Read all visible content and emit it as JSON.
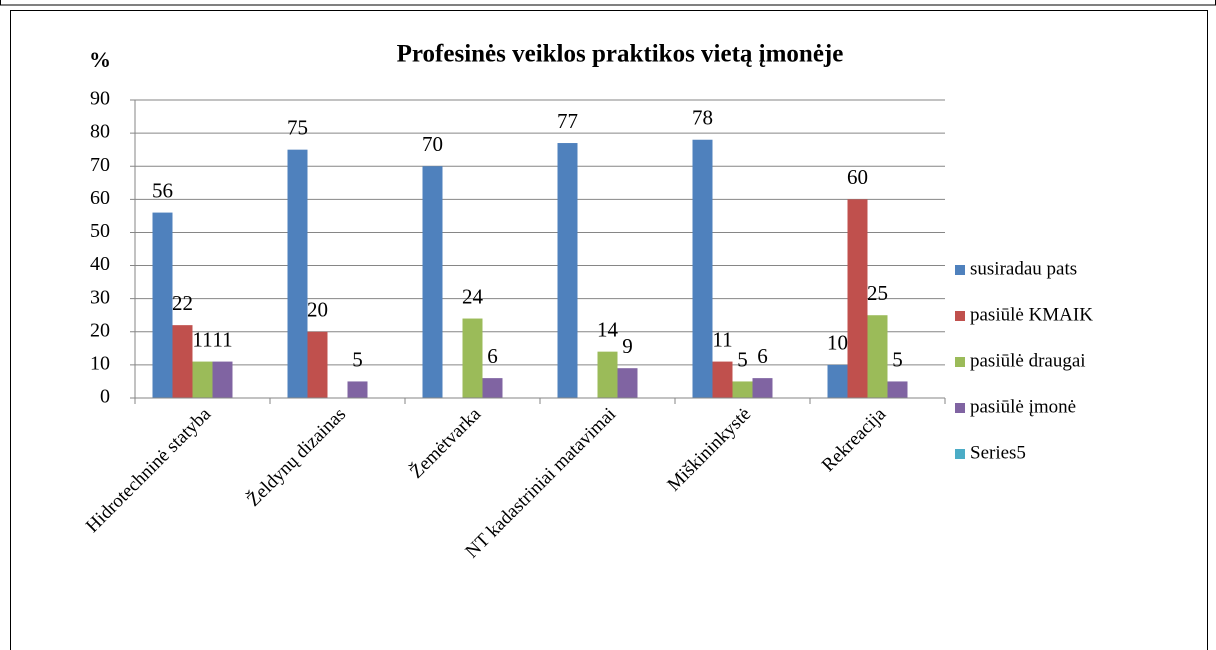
{
  "chart_data": {
    "type": "bar",
    "title": "Profesinės veiklos praktikos vietą įmonėje",
    "y_label": "%",
    "categories": [
      "Hidrotechninė statyba",
      "Želdynų dizainas",
      "Žemėtvarka",
      "NT kadastriniai matavimai",
      "Miškininkystė",
      "Rekreacija"
    ],
    "series": [
      {
        "name": "susiradau pats",
        "color": "#4f81bd",
        "values": [
          56,
          75,
          70,
          77,
          78,
          10
        ]
      },
      {
        "name": "pasiūlė KMAIK",
        "color": "#c0504d",
        "values": [
          22,
          20,
          null,
          null,
          11,
          60
        ]
      },
      {
        "name": "pasiūlė draugai",
        "color": "#9bbb59",
        "values": [
          11,
          null,
          24,
          14,
          5,
          25
        ]
      },
      {
        "name": "pasiūlė įmonė",
        "color": "#8064a2",
        "values": [
          11,
          5,
          6,
          9,
          6,
          5
        ]
      },
      {
        "name": "Series5",
        "color": "#4bacc6",
        "values": [
          null,
          null,
          null,
          null,
          null,
          null
        ]
      }
    ],
    "ylim": [
      0,
      90
    ],
    "yticks": [
      0,
      10,
      20,
      30,
      40,
      50,
      60,
      70,
      80,
      90
    ],
    "grid": true,
    "legend": "right"
  }
}
